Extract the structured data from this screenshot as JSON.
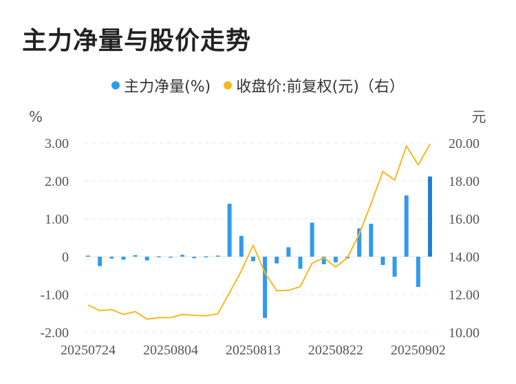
{
  "title": "主力净量与股价走势",
  "colors": {
    "bar": "#2f9bef",
    "bar_last": "#1e7fd8",
    "line": "#f5b81f",
    "grid": "#e6e6e6",
    "text": "#555555"
  },
  "chart_data": {
    "type": "bar+line",
    "legend": [
      {
        "name": "主力净量(%)",
        "color": "#2f9bef",
        "marker": "dot"
      },
      {
        "name": "收盘价:前复权(元)（右）",
        "color": "#f5b81f",
        "marker": "dot"
      }
    ],
    "left_unit": "%",
    "right_unit": "元",
    "y_left": {
      "min": -2,
      "max": 3,
      "ticks": [
        3,
        2,
        1,
        0,
        -1,
        -2
      ],
      "tick_labels": [
        "3.00",
        "2.00",
        "1.00",
        "0",
        "-1.00",
        "-2.00"
      ]
    },
    "y_right": {
      "min": 10,
      "max": 20,
      "ticks": [
        20,
        18,
        16,
        14,
        12,
        10
      ],
      "tick_labels": [
        "20.00",
        "18.00",
        "16.00",
        "14.00",
        "12.00",
        "10.00"
      ]
    },
    "x_tick_labels": [
      {
        "index": 0,
        "label": "20250724"
      },
      {
        "index": 7,
        "label": "20250804"
      },
      {
        "index": 14,
        "label": "20250813"
      },
      {
        "index": 21,
        "label": "20250822"
      },
      {
        "index": 28,
        "label": "20250902"
      }
    ],
    "series": [
      {
        "name": "主力净量(%)",
        "kind": "bar",
        "axis": "left",
        "values": [
          0.03,
          -0.25,
          -0.05,
          -0.08,
          0.04,
          -0.1,
          0.01,
          -0.02,
          0.05,
          -0.04,
          0.01,
          0.03,
          1.4,
          0.55,
          -0.12,
          -1.62,
          -0.18,
          0.25,
          -0.32,
          0.9,
          -0.2,
          -0.15,
          -0.05,
          0.75,
          0.87,
          -0.22,
          -0.53,
          1.62,
          -0.8,
          2.12
        ]
      },
      {
        "name": "收盘价:前复权(元)（右）",
        "kind": "line",
        "axis": "right",
        "values": [
          11.45,
          11.15,
          11.2,
          10.95,
          11.1,
          10.7,
          10.78,
          10.78,
          10.95,
          10.9,
          10.88,
          10.98,
          12.1,
          13.25,
          14.6,
          13.15,
          12.2,
          12.22,
          12.42,
          13.65,
          13.95,
          13.45,
          13.95,
          15.2,
          16.8,
          18.5,
          18.05,
          19.85,
          18.85,
          19.95
        ]
      }
    ]
  }
}
